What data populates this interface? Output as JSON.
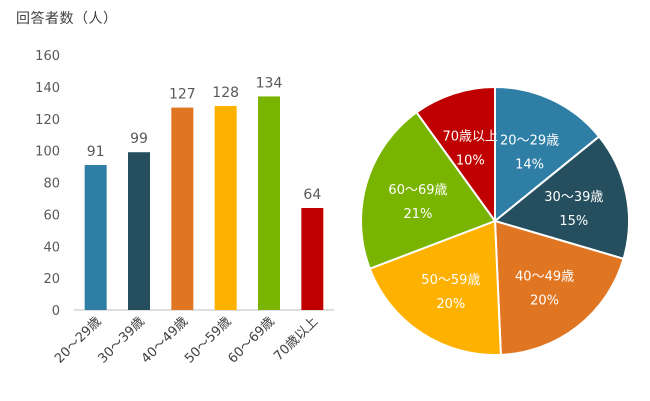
{
  "colors": {
    "bars": [
      "#2e7ea6",
      "#254f5f",
      "#e07522",
      "#ffb100",
      "#79b400",
      "#c00000"
    ],
    "axis_text": "#595959",
    "axis_line": "#bfbfbf",
    "pie_label": "#ffffff"
  },
  "chart_data": [
    {
      "type": "bar",
      "title": "回答者数（人）",
      "categories": [
        "20〜29歳",
        "30〜39歳",
        "40〜49歳",
        "50〜59歳",
        "60〜69歳",
        "70歳以上"
      ],
      "values": [
        91,
        99,
        127,
        128,
        134,
        64
      ],
      "ylim": [
        0,
        160
      ],
      "yticks": [
        0,
        20,
        40,
        60,
        80,
        100,
        120,
        140,
        160
      ],
      "grid": false,
      "data_labels": true
    },
    {
      "type": "pie",
      "labels": [
        "20〜29歳",
        "30〜39歳",
        "40〜49歳",
        "50〜59歳",
        "60〜69歳",
        "70歳以上"
      ],
      "percent_labels": [
        "14%",
        "15%",
        "20%",
        "20%",
        "21%",
        "10%"
      ],
      "values": [
        91,
        99,
        127,
        128,
        134,
        64
      ]
    }
  ]
}
